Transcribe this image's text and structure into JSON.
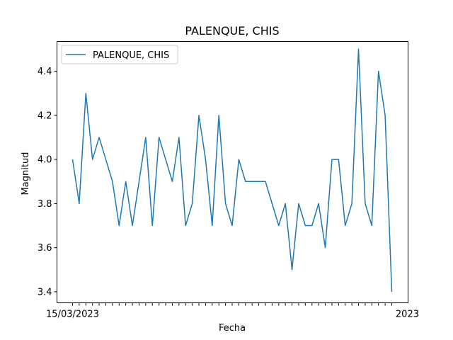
{
  "chart_data": {
    "type": "line",
    "title": "PALENQUE, CHIS",
    "xlabel": "Fecha",
    "ylabel": "Magnitud",
    "ylim": [
      3.35,
      4.535
    ],
    "yticks": [
      "3.4",
      "3.6",
      "3.8",
      "4.0",
      "4.2",
      "4.4"
    ],
    "first_xtick_label": "15/03/2023",
    "last_xtick_label": "2023",
    "legend_position": "upper-left",
    "grid": false,
    "color": "#1f77b4",
    "series": [
      {
        "name": "PALENQUE, CHIS",
        "values": [
          4.0,
          3.8,
          4.3,
          4.0,
          4.1,
          4.0,
          3.9,
          3.7,
          3.9,
          3.7,
          3.9,
          4.1,
          3.7,
          4.1,
          4.0,
          3.9,
          4.1,
          3.7,
          3.8,
          4.2,
          4.0,
          3.7,
          4.2,
          3.8,
          3.7,
          4.0,
          3.9,
          3.9,
          3.9,
          3.9,
          3.8,
          3.7,
          3.8,
          3.5,
          3.8,
          3.7,
          3.7,
          3.8,
          3.6,
          4.0,
          4.0,
          3.7,
          3.8,
          4.5,
          3.8,
          3.7,
          4.4,
          4.2,
          3.4
        ]
      }
    ]
  }
}
